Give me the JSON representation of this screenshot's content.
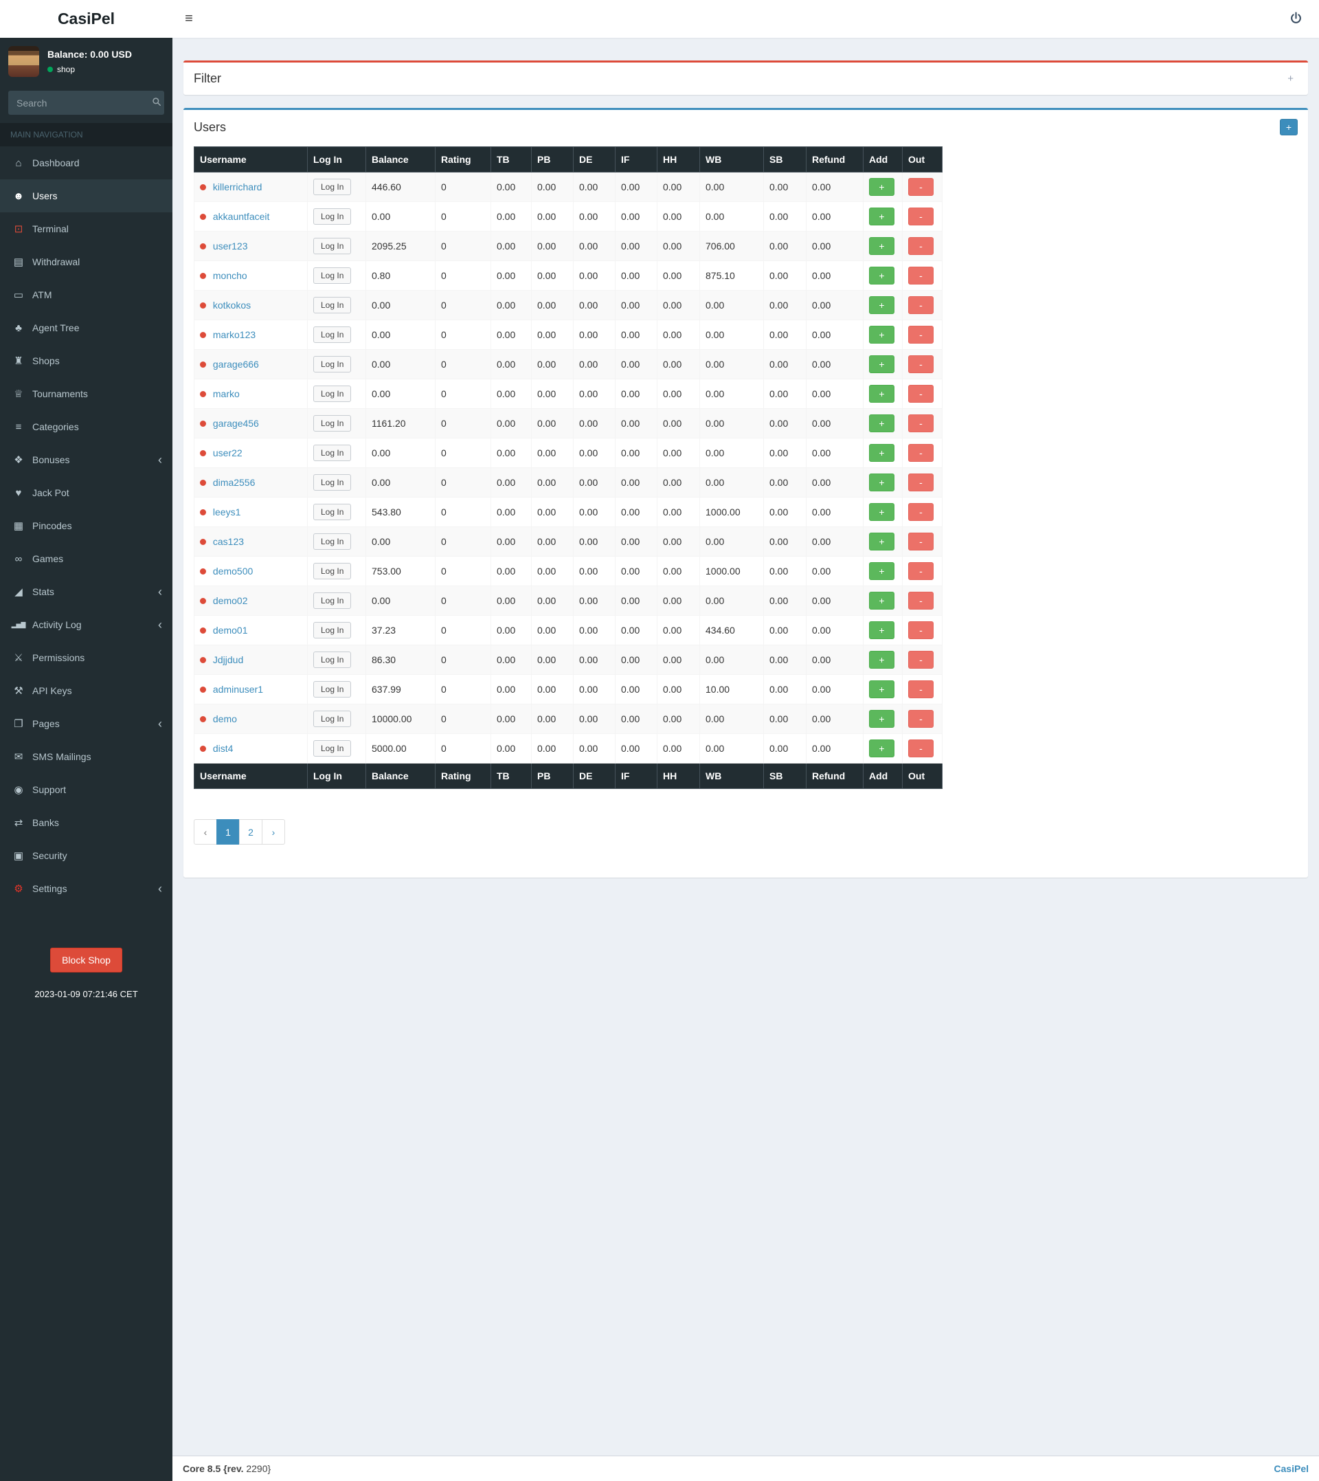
{
  "brand": "CasiPel",
  "topbar": {
    "hamburger": "≡"
  },
  "sidebar": {
    "balance": "Balance: 0.00 USD",
    "status_label": "shop",
    "search_placeholder": "Search",
    "section_label": "MAIN NAVIGATION",
    "items": [
      {
        "label": "Dashboard",
        "icon": "home-icon",
        "glyph": "⌂",
        "active": false,
        "chevron": false
      },
      {
        "label": "Users",
        "icon": "users-icon",
        "glyph": "☻",
        "active": true,
        "chevron": false
      },
      {
        "label": "Terminal",
        "icon": "terminal-monitor-icon",
        "glyph": "⊡",
        "active": false,
        "chevron": false,
        "color": "#dd4b39"
      },
      {
        "label": "Withdrawal",
        "icon": "money-icon",
        "glyph": "▤",
        "active": false,
        "chevron": false
      },
      {
        "label": "ATM",
        "icon": "credit-card-icon",
        "glyph": "▭",
        "active": false,
        "chevron": false
      },
      {
        "label": "Agent Tree",
        "icon": "tree-icon",
        "glyph": "♣",
        "active": false,
        "chevron": false
      },
      {
        "label": "Shops",
        "icon": "bank-icon",
        "glyph": "♜",
        "active": false,
        "chevron": false
      },
      {
        "label": "Tournaments",
        "icon": "trophy-icon",
        "glyph": "♕",
        "active": false,
        "chevron": false
      },
      {
        "label": "Categories",
        "icon": "list-icon",
        "glyph": "≡",
        "active": false,
        "chevron": false
      },
      {
        "label": "Bonuses",
        "icon": "gift-icon",
        "glyph": "❖",
        "active": false,
        "chevron": true
      },
      {
        "label": "Jack Pot",
        "icon": "heart-icon",
        "glyph": "♥",
        "active": false,
        "chevron": false
      },
      {
        "label": "Pincodes",
        "icon": "grid-icon",
        "glyph": "▦",
        "active": false,
        "chevron": false
      },
      {
        "label": "Games",
        "icon": "gamepad-icon",
        "glyph": "∞",
        "active": false,
        "chevron": false
      },
      {
        "label": "Stats",
        "icon": "area-chart-icon",
        "glyph": "◢",
        "active": false,
        "chevron": true
      },
      {
        "label": "Activity Log",
        "icon": "bar-chart-icon",
        "glyph": "▂▅▇",
        "active": false,
        "chevron": true
      },
      {
        "label": "Permissions",
        "icon": "permissions-icon",
        "glyph": "⚔",
        "active": false,
        "chevron": false
      },
      {
        "label": "API Keys",
        "icon": "wrench-icon",
        "glyph": "⚒",
        "active": false,
        "chevron": false
      },
      {
        "label": "Pages",
        "icon": "pages-icon",
        "glyph": "❐",
        "active": false,
        "chevron": true
      },
      {
        "label": "SMS Mailings",
        "icon": "comment-icon",
        "glyph": "✉",
        "active": false,
        "chevron": false
      },
      {
        "label": "Support",
        "icon": "life-ring-icon",
        "glyph": "◉",
        "active": false,
        "chevron": false
      },
      {
        "label": "Banks",
        "icon": "exchange-icon",
        "glyph": "⇄",
        "active": false,
        "chevron": false
      },
      {
        "label": "Security",
        "icon": "lock-icon",
        "glyph": "▣",
        "active": false,
        "chevron": false
      },
      {
        "label": "Settings",
        "icon": "gear-icon",
        "glyph": "⚙",
        "active": false,
        "chevron": true,
        "color": "#e53529"
      }
    ],
    "block_button": "Block Shop",
    "timestamp": "2023-01-09 07:21:46 CET"
  },
  "filter_panel": {
    "title": "Filter",
    "expand_icon": "+"
  },
  "users_panel": {
    "title": "Users",
    "add_button": "+",
    "table": {
      "columns": [
        "Username",
        "Log In",
        "Balance",
        "Rating",
        "TB",
        "PB",
        "DE",
        "IF",
        "HH",
        "WB",
        "SB",
        "Refund",
        "Add",
        "Out"
      ],
      "login_button": "Log In",
      "add_cell_button": "+",
      "out_cell_button": "-",
      "rows": [
        {
          "username": "killerrichard",
          "values": [
            "446.60",
            "0",
            "0.00",
            "0.00",
            "0.00",
            "0.00",
            "0.00",
            "0.00",
            "0.00",
            "0.00"
          ]
        },
        {
          "username": "akkauntfaceit",
          "values": [
            "0.00",
            "0",
            "0.00",
            "0.00",
            "0.00",
            "0.00",
            "0.00",
            "0.00",
            "0.00",
            "0.00"
          ]
        },
        {
          "username": "user123",
          "values": [
            "2095.25",
            "0",
            "0.00",
            "0.00",
            "0.00",
            "0.00",
            "0.00",
            "706.00",
            "0.00",
            "0.00"
          ]
        },
        {
          "username": "moncho",
          "values": [
            "0.80",
            "0",
            "0.00",
            "0.00",
            "0.00",
            "0.00",
            "0.00",
            "875.10",
            "0.00",
            "0.00"
          ]
        },
        {
          "username": "kotkokos",
          "values": [
            "0.00",
            "0",
            "0.00",
            "0.00",
            "0.00",
            "0.00",
            "0.00",
            "0.00",
            "0.00",
            "0.00"
          ]
        },
        {
          "username": "marko123",
          "values": [
            "0.00",
            "0",
            "0.00",
            "0.00",
            "0.00",
            "0.00",
            "0.00",
            "0.00",
            "0.00",
            "0.00"
          ]
        },
        {
          "username": "garage666",
          "values": [
            "0.00",
            "0",
            "0.00",
            "0.00",
            "0.00",
            "0.00",
            "0.00",
            "0.00",
            "0.00",
            "0.00"
          ]
        },
        {
          "username": "marko",
          "values": [
            "0.00",
            "0",
            "0.00",
            "0.00",
            "0.00",
            "0.00",
            "0.00",
            "0.00",
            "0.00",
            "0.00"
          ]
        },
        {
          "username": "garage456",
          "values": [
            "1161.20",
            "0",
            "0.00",
            "0.00",
            "0.00",
            "0.00",
            "0.00",
            "0.00",
            "0.00",
            "0.00"
          ]
        },
        {
          "username": "user22",
          "values": [
            "0.00",
            "0",
            "0.00",
            "0.00",
            "0.00",
            "0.00",
            "0.00",
            "0.00",
            "0.00",
            "0.00"
          ]
        },
        {
          "username": "dima2556",
          "values": [
            "0.00",
            "0",
            "0.00",
            "0.00",
            "0.00",
            "0.00",
            "0.00",
            "0.00",
            "0.00",
            "0.00"
          ]
        },
        {
          "username": "leeys1",
          "values": [
            "543.80",
            "0",
            "0.00",
            "0.00",
            "0.00",
            "0.00",
            "0.00",
            "1000.00",
            "0.00",
            "0.00"
          ]
        },
        {
          "username": "cas123",
          "values": [
            "0.00",
            "0",
            "0.00",
            "0.00",
            "0.00",
            "0.00",
            "0.00",
            "0.00",
            "0.00",
            "0.00"
          ]
        },
        {
          "username": "demo500",
          "values": [
            "753.00",
            "0",
            "0.00",
            "0.00",
            "0.00",
            "0.00",
            "0.00",
            "1000.00",
            "0.00",
            "0.00"
          ]
        },
        {
          "username": "demo02",
          "values": [
            "0.00",
            "0",
            "0.00",
            "0.00",
            "0.00",
            "0.00",
            "0.00",
            "0.00",
            "0.00",
            "0.00"
          ]
        },
        {
          "username": "demo01",
          "values": [
            "37.23",
            "0",
            "0.00",
            "0.00",
            "0.00",
            "0.00",
            "0.00",
            "434.60",
            "0.00",
            "0.00"
          ]
        },
        {
          "username": "Jdjjdud",
          "values": [
            "86.30",
            "0",
            "0.00",
            "0.00",
            "0.00",
            "0.00",
            "0.00",
            "0.00",
            "0.00",
            "0.00"
          ]
        },
        {
          "username": "adminuser1",
          "values": [
            "637.99",
            "0",
            "0.00",
            "0.00",
            "0.00",
            "0.00",
            "0.00",
            "10.00",
            "0.00",
            "0.00"
          ]
        },
        {
          "username": "demo",
          "values": [
            "10000.00",
            "0",
            "0.00",
            "0.00",
            "0.00",
            "0.00",
            "0.00",
            "0.00",
            "0.00",
            "0.00"
          ]
        },
        {
          "username": "dist4",
          "values": [
            "5000.00",
            "0",
            "0.00",
            "0.00",
            "0.00",
            "0.00",
            "0.00",
            "0.00",
            "0.00",
            "0.00"
          ]
        }
      ]
    },
    "pagination": {
      "prev": "‹",
      "pages": [
        "1",
        "2"
      ],
      "active_page": "1",
      "next": "›"
    }
  },
  "footer": {
    "left_bold": "Core 8.5 {rev.",
    "left_normal": " 2290}",
    "right": "CasiPel"
  },
  "colors": {
    "accent_blue": "#3c8dbc",
    "accent_red": "#dd4b39",
    "green": "#5cb85c",
    "salmon": "#ec7168",
    "sidebar_bg": "#222d32"
  }
}
